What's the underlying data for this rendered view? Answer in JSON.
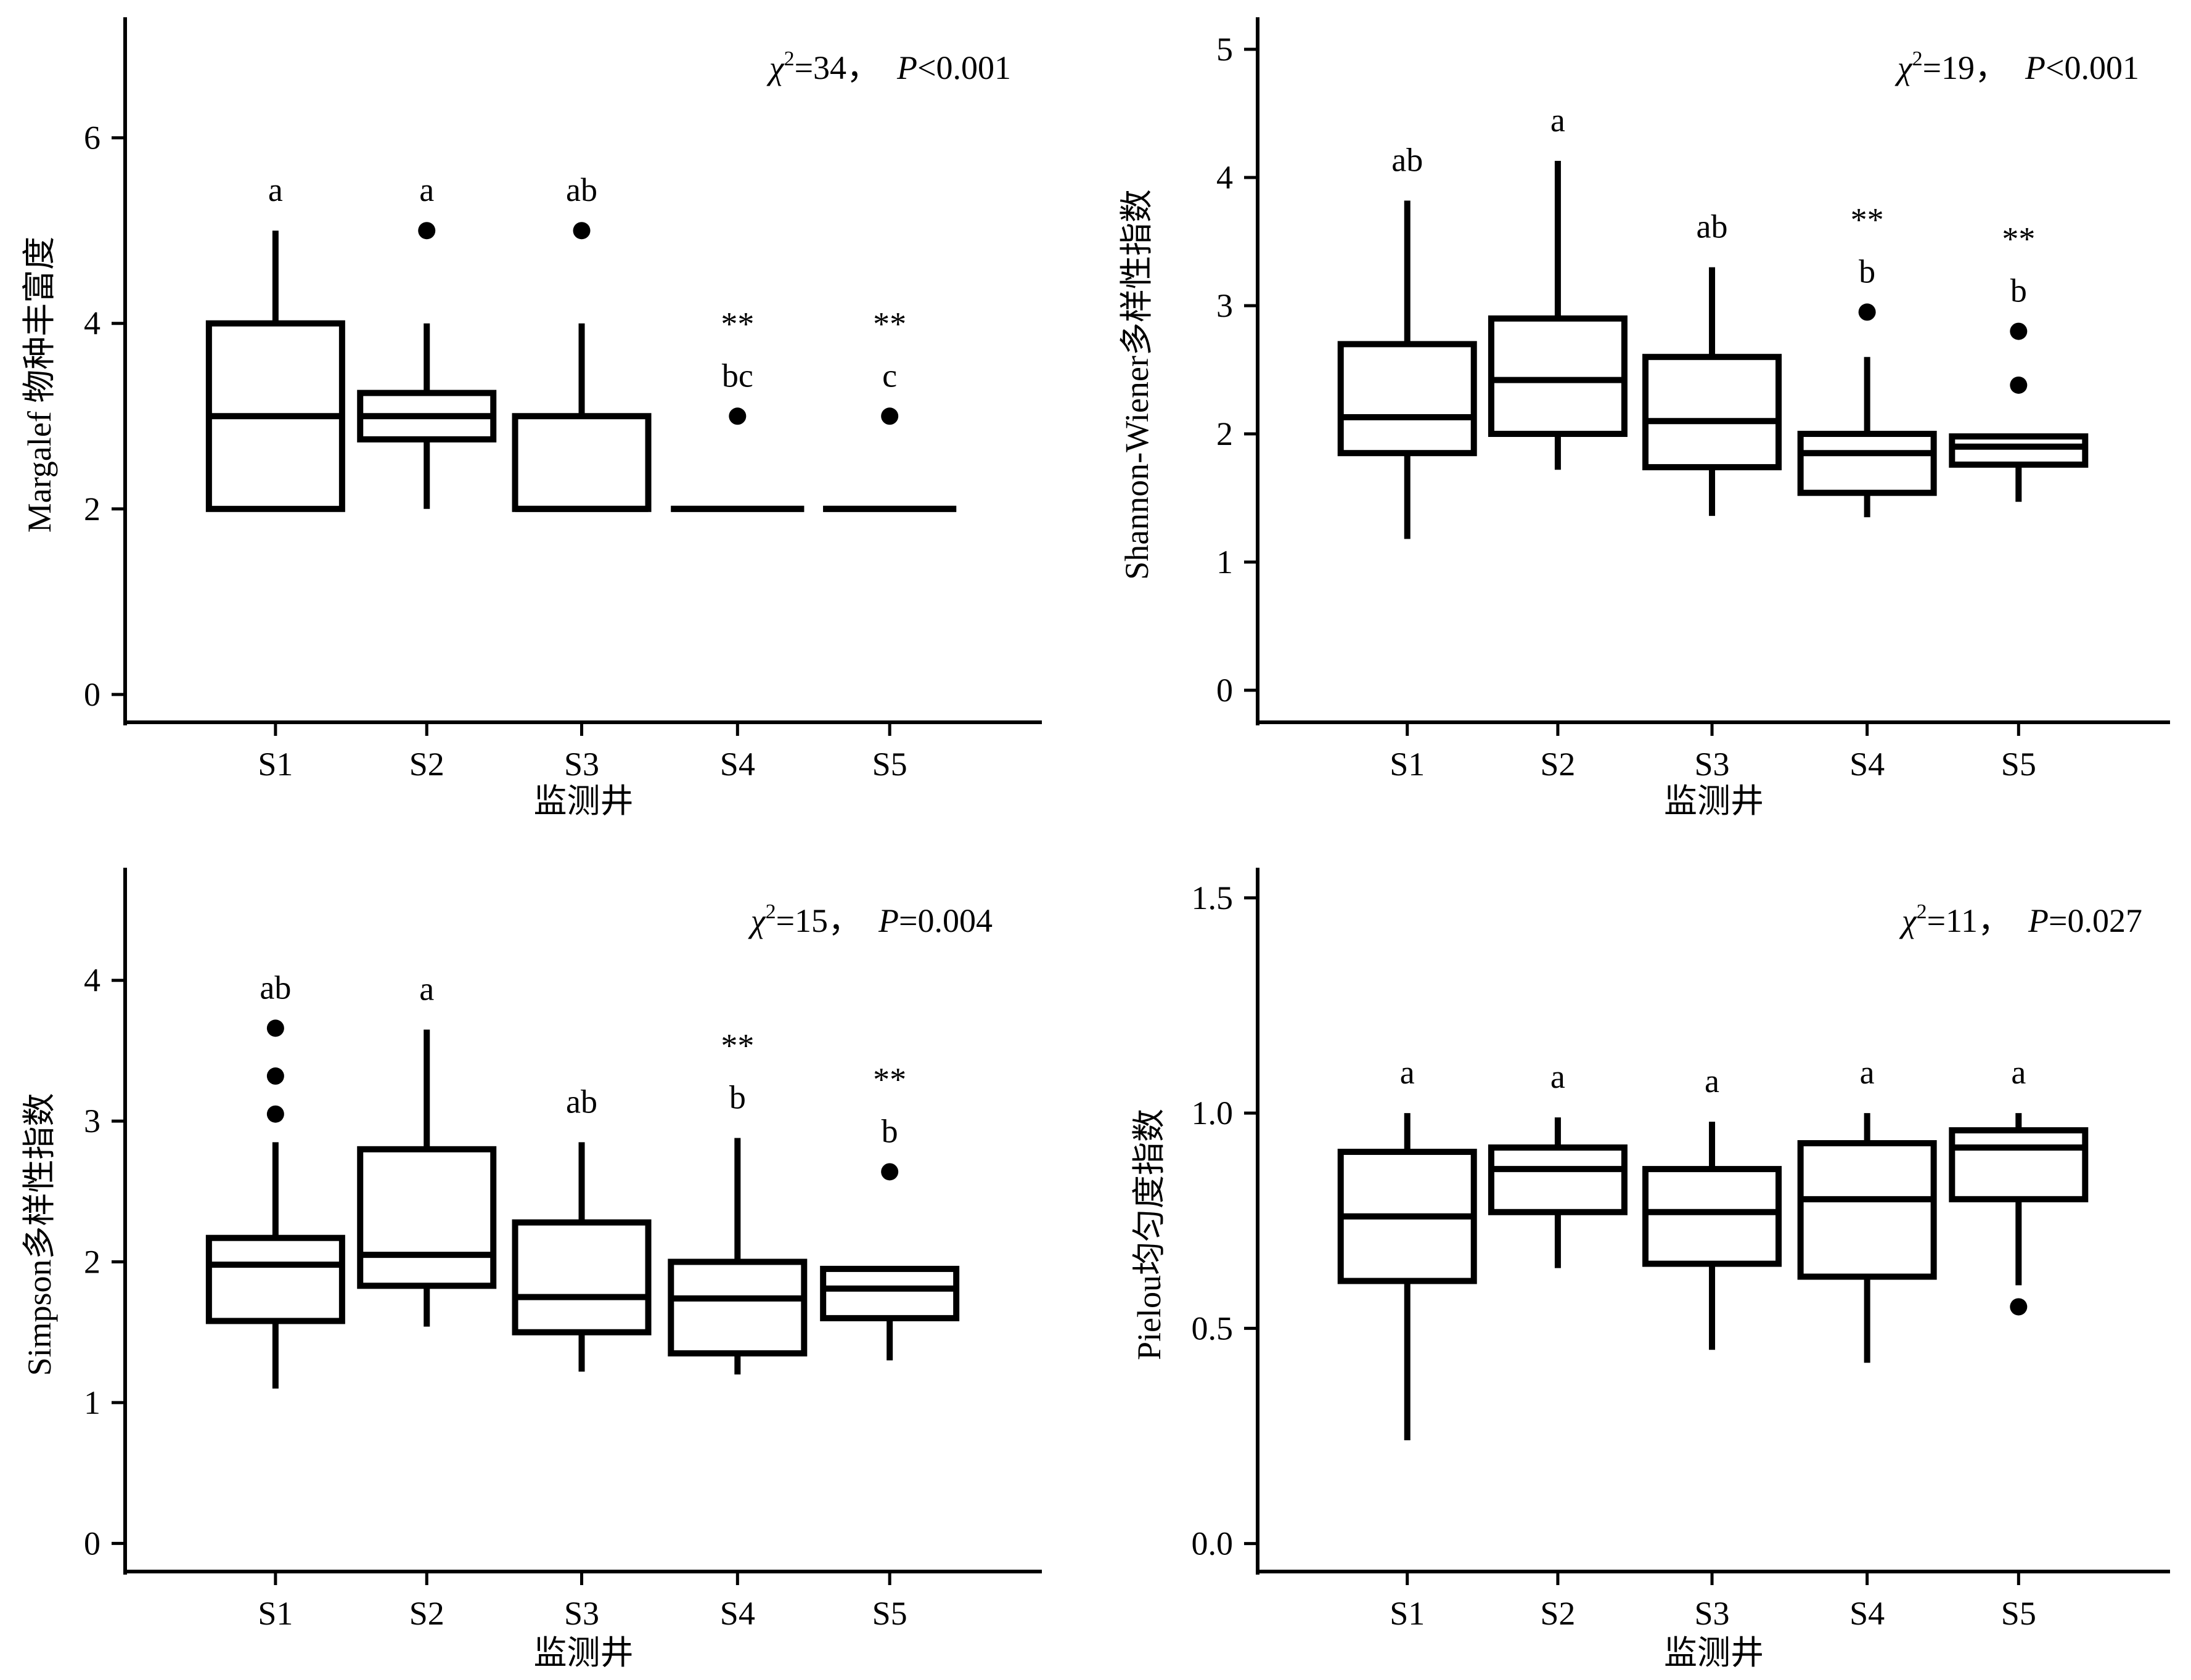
{
  "chart_data": [
    {
      "type": "boxplot",
      "ylabel": "Margalef 物种丰富度",
      "xlabel": "监测井",
      "categories": [
        "S1",
        "S2",
        "S3",
        "S4",
        "S5"
      ],
      "ylim": [
        -0.3,
        7.3
      ],
      "yticks": [
        0,
        2,
        4,
        6
      ],
      "stat": {
        "chi": "χ",
        "sup": "2",
        "eq": "=34，",
        "p": "P",
        "pval": "<0.001"
      },
      "boxes": [
        {
          "whisker_low": 2,
          "q1": 2,
          "median": 3,
          "q3": 4,
          "whisker_high": 5,
          "outliers": []
        },
        {
          "whisker_low": 2,
          "q1": 2.75,
          "median": 3,
          "q3": 3.25,
          "whisker_high": 4,
          "outliers": [
            5
          ]
        },
        {
          "whisker_low": 2,
          "q1": 2,
          "median": 2,
          "q3": 3,
          "whisker_high": 4,
          "outliers": [
            5
          ]
        },
        {
          "whisker_low": 2,
          "q1": 2,
          "median": 2,
          "q3": 2,
          "whisker_high": 2,
          "outliers": [
            3
          ]
        },
        {
          "whisker_low": 2,
          "q1": 2,
          "median": 2,
          "q3": 2,
          "whisker_high": 2,
          "outliers": [
            3
          ]
        }
      ],
      "letters": [
        "a",
        "a",
        "ab",
        "bc",
        "c"
      ],
      "stars": [
        "",
        "",
        "",
        "**",
        "**"
      ]
    },
    {
      "type": "boxplot",
      "ylabel": "Shannon-Wiener多样性指数",
      "xlabel": "监测井",
      "categories": [
        "S1",
        "S2",
        "S3",
        "S4",
        "S5"
      ],
      "ylim": [
        -0.25,
        5.25
      ],
      "yticks": [
        0,
        1,
        2,
        3,
        4,
        5
      ],
      "stat": {
        "chi": "χ",
        "sup": "2",
        "eq": "=19，",
        "p": "P",
        "pval": "<0.001"
      },
      "boxes": [
        {
          "whisker_low": 1.18,
          "q1": 1.85,
          "median": 2.13,
          "q3": 2.7,
          "whisker_high": 3.82,
          "outliers": []
        },
        {
          "whisker_low": 1.72,
          "q1": 2.0,
          "median": 2.42,
          "q3": 2.9,
          "whisker_high": 4.13,
          "outliers": []
        },
        {
          "whisker_low": 1.36,
          "q1": 1.74,
          "median": 2.1,
          "q3": 2.6,
          "whisker_high": 3.3,
          "outliers": []
        },
        {
          "whisker_low": 1.35,
          "q1": 1.54,
          "median": 1.85,
          "q3": 2.0,
          "whisker_high": 2.6,
          "outliers": [
            2.95
          ]
        },
        {
          "whisker_low": 1.47,
          "q1": 1.76,
          "median": 1.9,
          "q3": 1.98,
          "whisker_high": 1.98,
          "outliers": [
            2.38,
            2.8
          ]
        }
      ],
      "letters": [
        "ab",
        "a",
        "ab",
        "b",
        "b"
      ],
      "stars": [
        "",
        "",
        "",
        "**",
        "**"
      ]
    },
    {
      "type": "boxplot",
      "ylabel": "Simpson多样性指数",
      "xlabel": "监测井",
      "categories": [
        "S1",
        "S2",
        "S3",
        "S4",
        "S5"
      ],
      "ylim": [
        -0.2,
        4.8
      ],
      "yticks": [
        0,
        1,
        2,
        3,
        4
      ],
      "stat": {
        "chi": "χ",
        "sup": "2",
        "eq": "=15，",
        "p": "P",
        "pval": "=0.004"
      },
      "boxes": [
        {
          "whisker_low": 1.1,
          "q1": 1.58,
          "median": 1.98,
          "q3": 2.17,
          "whisker_high": 2.85,
          "outliers": [
            3.05,
            3.32,
            3.66
          ]
        },
        {
          "whisker_low": 1.54,
          "q1": 1.83,
          "median": 2.05,
          "q3": 2.8,
          "whisker_high": 3.65,
          "outliers": []
        },
        {
          "whisker_low": 1.22,
          "q1": 1.5,
          "median": 1.75,
          "q3": 2.28,
          "whisker_high": 2.85,
          "outliers": []
        },
        {
          "whisker_low": 1.2,
          "q1": 1.35,
          "median": 1.74,
          "q3": 2.0,
          "whisker_high": 2.88,
          "outliers": []
        },
        {
          "whisker_low": 1.3,
          "q1": 1.6,
          "median": 1.81,
          "q3": 1.95,
          "whisker_high": 1.97,
          "outliers": [
            2.64
          ]
        }
      ],
      "letters": [
        "ab",
        "a",
        "ab",
        "b",
        "b"
      ],
      "stars": [
        "",
        "",
        "",
        "**",
        "**"
      ]
    },
    {
      "type": "boxplot",
      "ylabel": "Pielou均匀度指数",
      "xlabel": "监测井",
      "categories": [
        "S1",
        "S2",
        "S3",
        "S4",
        "S5"
      ],
      "ylim": [
        -0.065,
        1.57
      ],
      "yticks": [
        0.0,
        0.5,
        1.0,
        1.5
      ],
      "ytick_labels": [
        "0.0",
        "0.5",
        "1.0",
        "1.5"
      ],
      "stat": {
        "chi": "χ",
        "sup": "2",
        "eq": "=11，",
        "p": "P",
        "pval": "=0.027"
      },
      "boxes": [
        {
          "whisker_low": 0.24,
          "q1": 0.61,
          "median": 0.76,
          "q3": 0.91,
          "whisker_high": 1.0,
          "outliers": []
        },
        {
          "whisker_low": 0.64,
          "q1": 0.77,
          "median": 0.87,
          "q3": 0.92,
          "whisker_high": 0.99,
          "outliers": []
        },
        {
          "whisker_low": 0.45,
          "q1": 0.65,
          "median": 0.77,
          "q3": 0.87,
          "whisker_high": 0.98,
          "outliers": []
        },
        {
          "whisker_low": 0.42,
          "q1": 0.62,
          "median": 0.8,
          "q3": 0.93,
          "whisker_high": 1.0,
          "outliers": []
        },
        {
          "whisker_low": 0.6,
          "q1": 0.8,
          "median": 0.92,
          "q3": 0.96,
          "whisker_high": 1.0,
          "outliers": [
            0.55
          ]
        }
      ],
      "letters": [
        "a",
        "a",
        "a",
        "a",
        "a"
      ],
      "stars": [
        "",
        "",
        "",
        "",
        ""
      ]
    }
  ]
}
